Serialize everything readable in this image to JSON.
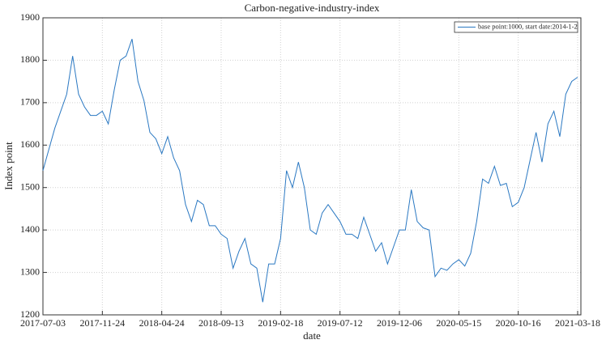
{
  "chart_data": {
    "type": "line",
    "title": "Carbon-negative-industry-index",
    "xlabel": "date",
    "ylabel": "Index point",
    "categories": [
      "2017-07-03",
      null,
      null,
      null,
      null,
      null,
      null,
      null,
      null,
      null,
      "2017-11-24",
      null,
      null,
      null,
      null,
      null,
      null,
      null,
      null,
      null,
      "2018-04-24",
      null,
      null,
      null,
      null,
      null,
      null,
      null,
      null,
      null,
      "2018-09-13",
      null,
      null,
      null,
      null,
      null,
      null,
      null,
      null,
      null,
      "2019-02-18",
      null,
      null,
      null,
      null,
      null,
      null,
      null,
      null,
      null,
      "2019-07-12",
      null,
      null,
      null,
      null,
      null,
      null,
      null,
      null,
      null,
      "2019-12-06",
      null,
      null,
      null,
      null,
      null,
      null,
      null,
      null,
      null,
      "2020-05-15",
      null,
      null,
      null,
      null,
      null,
      null,
      null,
      null,
      null,
      "2020-10-16",
      null,
      null,
      null,
      null,
      null,
      null,
      null,
      null,
      null,
      "2021-03-18"
    ],
    "series": [
      {
        "name": "base point:1000, start date:2014-1-2",
        "color": "#2a78c2",
        "values": [
          1540,
          1590,
          1640,
          1680,
          1720,
          1810,
          1720,
          1690,
          1670,
          1670,
          1680,
          1650,
          1730,
          1800,
          1810,
          1850,
          1750,
          1705,
          1630,
          1615,
          1580,
          1620,
          1570,
          1540,
          1460,
          1420,
          1470,
          1460,
          1410,
          1410,
          1390,
          1380,
          1310,
          1350,
          1380,
          1320,
          1310,
          1230,
          1320,
          1320,
          1380,
          1540,
          1500,
          1560,
          1500,
          1400,
          1390,
          1440,
          1460,
          1440,
          1420,
          1390,
          1390,
          1380,
          1430,
          1390,
          1350,
          1370,
          1320,
          1360,
          1400,
          1400,
          1495,
          1420,
          1405,
          1400,
          1290,
          1310,
          1305,
          1320,
          1330,
          1315,
          1345,
          1420,
          1520,
          1510,
          1550,
          1505,
          1510,
          1455,
          1465,
          1500,
          1565,
          1630,
          1560,
          1650,
          1680,
          1620,
          1720,
          1750,
          1760
        ]
      }
    ],
    "ylim": [
      1200,
      1900
    ],
    "yticks": [
      1200,
      1300,
      1400,
      1500,
      1600,
      1700,
      1800,
      1900
    ],
    "grid": true,
    "legend": "upper right"
  }
}
